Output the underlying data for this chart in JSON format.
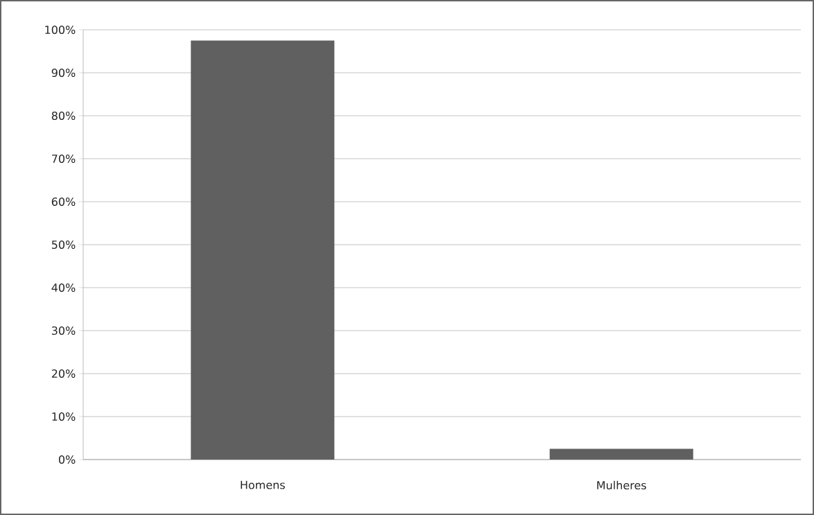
{
  "chart_data": {
    "type": "bar",
    "categories": [
      "Homens",
      "Mulheres"
    ],
    "values": [
      97.5,
      2.5
    ],
    "color": "#606060",
    "ylim": [
      0,
      100
    ],
    "yticks": [
      {
        "value": 0,
        "label": "0%"
      },
      {
        "value": 10,
        "label": "10%"
      },
      {
        "value": 20,
        "label": "20%"
      },
      {
        "value": 30,
        "label": "30%"
      },
      {
        "value": 40,
        "label": "40%"
      },
      {
        "value": 50,
        "label": "50%"
      },
      {
        "value": 60,
        "label": "60%"
      },
      {
        "value": 70,
        "label": "70%"
      },
      {
        "value": 80,
        "label": "80%"
      },
      {
        "value": 90,
        "label": "90%"
      },
      {
        "value": 100,
        "label": "100%"
      }
    ],
    "grid": "y"
  }
}
